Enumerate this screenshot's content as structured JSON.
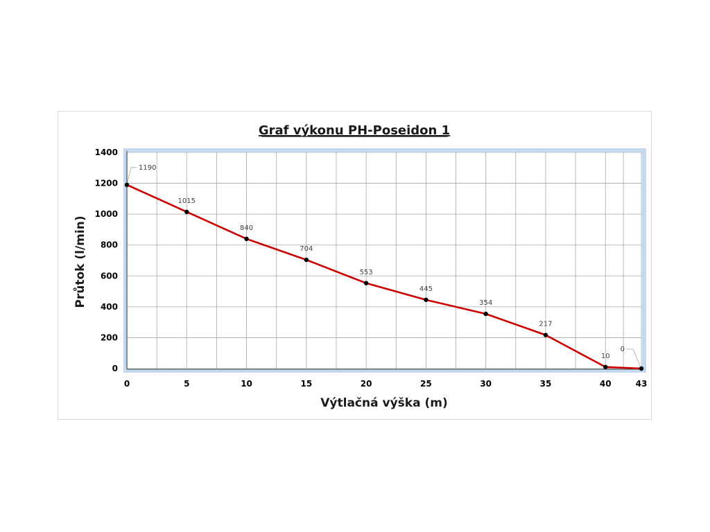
{
  "chart_data": {
    "type": "line",
    "title": "Graf výkonu PH-Poseidon 1",
    "xlabel": "Výtlačná výška (m)",
    "ylabel": "Průtok  (l/min)",
    "x": [
      0,
      5,
      10,
      15,
      20,
      25,
      30,
      35,
      40,
      43
    ],
    "x_tick_labels": [
      "0",
      "5",
      "10",
      "15",
      "20",
      "25",
      "30",
      "35",
      "40",
      "43"
    ],
    "series": [
      {
        "values": [
          1190,
          1015,
          840,
          704,
          553,
          445,
          354,
          217,
          10,
          0
        ],
        "data_labels": [
          "1190",
          "1015",
          "840",
          "704",
          "553",
          "445",
          "354",
          "217",
          "10",
          "0"
        ],
        "color": "#cc0000",
        "marker_color": "#000000"
      }
    ],
    "ylim": [
      0,
      1400
    ],
    "y_ticks": [
      0,
      200,
      400,
      600,
      800,
      1000,
      1200,
      1400
    ],
    "grid": true,
    "legend": "none",
    "plot_background": "#ffffff",
    "plot_border_color": "#c5d9ee"
  }
}
